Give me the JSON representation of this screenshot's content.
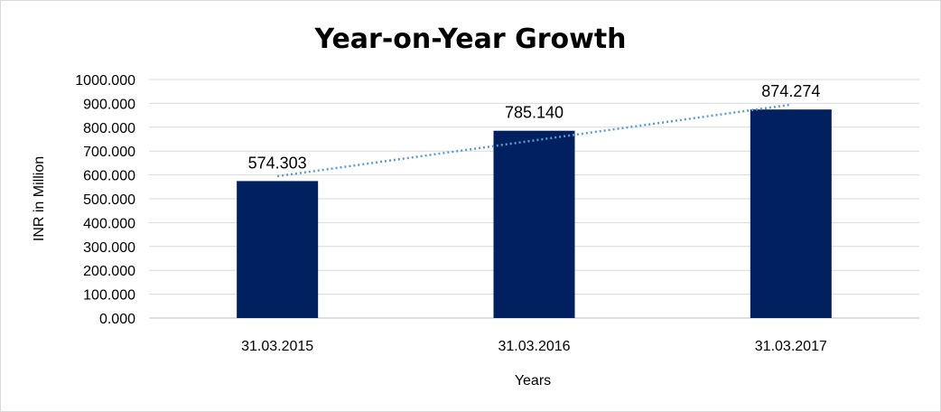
{
  "chart_data": {
    "type": "bar",
    "title": "Year-on-Year Growth",
    "xlabel": "Years",
    "ylabel": "INR in Million",
    "categories": [
      "31.03.2015",
      "31.03.2016",
      "31.03.2017"
    ],
    "values": [
      574.303,
      785.14,
      874.274
    ],
    "data_labels": [
      "574.303",
      "785.140",
      "874.274"
    ],
    "ylim": [
      0,
      1000
    ],
    "yticks": [
      "0.000",
      "100.000",
      "200.000",
      "300.000",
      "400.000",
      "500.000",
      "600.000",
      "700.000",
      "800.000",
      "900.000",
      "1000.000"
    ],
    "grid": true,
    "trendline": "linear",
    "colors": {
      "bar": "#002060",
      "trendline": "#5B9BD5",
      "grid": "#D9D9D9"
    }
  }
}
